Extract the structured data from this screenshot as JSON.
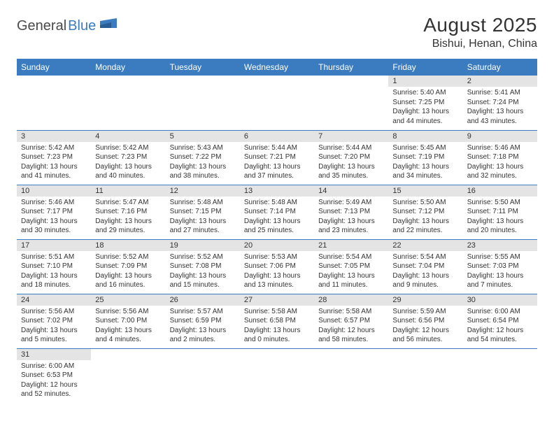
{
  "logo": {
    "text1": "General",
    "text2": "Blue"
  },
  "title": "August 2025",
  "location": "Bishui, Henan, China",
  "colors": {
    "header_bg": "#3b7bbf",
    "header_text": "#ffffff",
    "daynum_bg": "#e4e4e4",
    "border": "#3b7bbf",
    "body_text": "#333333",
    "page_bg": "#ffffff"
  },
  "fonts": {
    "title_size": 28,
    "location_size": 16,
    "dayhead_size": 12,
    "daynum_size": 11,
    "content_size": 10
  },
  "day_headers": [
    "Sunday",
    "Monday",
    "Tuesday",
    "Wednesday",
    "Thursday",
    "Friday",
    "Saturday"
  ],
  "weeks": [
    [
      null,
      null,
      null,
      null,
      null,
      {
        "n": "1",
        "sr": "5:40 AM",
        "ss": "7:25 PM",
        "dl": "13 hours and 44 minutes."
      },
      {
        "n": "2",
        "sr": "5:41 AM",
        "ss": "7:24 PM",
        "dl": "13 hours and 43 minutes."
      }
    ],
    [
      {
        "n": "3",
        "sr": "5:42 AM",
        "ss": "7:23 PM",
        "dl": "13 hours and 41 minutes."
      },
      {
        "n": "4",
        "sr": "5:42 AM",
        "ss": "7:23 PM",
        "dl": "13 hours and 40 minutes."
      },
      {
        "n": "5",
        "sr": "5:43 AM",
        "ss": "7:22 PM",
        "dl": "13 hours and 38 minutes."
      },
      {
        "n": "6",
        "sr": "5:44 AM",
        "ss": "7:21 PM",
        "dl": "13 hours and 37 minutes."
      },
      {
        "n": "7",
        "sr": "5:44 AM",
        "ss": "7:20 PM",
        "dl": "13 hours and 35 minutes."
      },
      {
        "n": "8",
        "sr": "5:45 AM",
        "ss": "7:19 PM",
        "dl": "13 hours and 34 minutes."
      },
      {
        "n": "9",
        "sr": "5:46 AM",
        "ss": "7:18 PM",
        "dl": "13 hours and 32 minutes."
      }
    ],
    [
      {
        "n": "10",
        "sr": "5:46 AM",
        "ss": "7:17 PM",
        "dl": "13 hours and 30 minutes."
      },
      {
        "n": "11",
        "sr": "5:47 AM",
        "ss": "7:16 PM",
        "dl": "13 hours and 29 minutes."
      },
      {
        "n": "12",
        "sr": "5:48 AM",
        "ss": "7:15 PM",
        "dl": "13 hours and 27 minutes."
      },
      {
        "n": "13",
        "sr": "5:48 AM",
        "ss": "7:14 PM",
        "dl": "13 hours and 25 minutes."
      },
      {
        "n": "14",
        "sr": "5:49 AM",
        "ss": "7:13 PM",
        "dl": "13 hours and 23 minutes."
      },
      {
        "n": "15",
        "sr": "5:50 AM",
        "ss": "7:12 PM",
        "dl": "13 hours and 22 minutes."
      },
      {
        "n": "16",
        "sr": "5:50 AM",
        "ss": "7:11 PM",
        "dl": "13 hours and 20 minutes."
      }
    ],
    [
      {
        "n": "17",
        "sr": "5:51 AM",
        "ss": "7:10 PM",
        "dl": "13 hours and 18 minutes."
      },
      {
        "n": "18",
        "sr": "5:52 AM",
        "ss": "7:09 PM",
        "dl": "13 hours and 16 minutes."
      },
      {
        "n": "19",
        "sr": "5:52 AM",
        "ss": "7:08 PM",
        "dl": "13 hours and 15 minutes."
      },
      {
        "n": "20",
        "sr": "5:53 AM",
        "ss": "7:06 PM",
        "dl": "13 hours and 13 minutes."
      },
      {
        "n": "21",
        "sr": "5:54 AM",
        "ss": "7:05 PM",
        "dl": "13 hours and 11 minutes."
      },
      {
        "n": "22",
        "sr": "5:54 AM",
        "ss": "7:04 PM",
        "dl": "13 hours and 9 minutes."
      },
      {
        "n": "23",
        "sr": "5:55 AM",
        "ss": "7:03 PM",
        "dl": "13 hours and 7 minutes."
      }
    ],
    [
      {
        "n": "24",
        "sr": "5:56 AM",
        "ss": "7:02 PM",
        "dl": "13 hours and 5 minutes."
      },
      {
        "n": "25",
        "sr": "5:56 AM",
        "ss": "7:00 PM",
        "dl": "13 hours and 4 minutes."
      },
      {
        "n": "26",
        "sr": "5:57 AM",
        "ss": "6:59 PM",
        "dl": "13 hours and 2 minutes."
      },
      {
        "n": "27",
        "sr": "5:58 AM",
        "ss": "6:58 PM",
        "dl": "13 hours and 0 minutes."
      },
      {
        "n": "28",
        "sr": "5:58 AM",
        "ss": "6:57 PM",
        "dl": "12 hours and 58 minutes."
      },
      {
        "n": "29",
        "sr": "5:59 AM",
        "ss": "6:56 PM",
        "dl": "12 hours and 56 minutes."
      },
      {
        "n": "30",
        "sr": "6:00 AM",
        "ss": "6:54 PM",
        "dl": "12 hours and 54 minutes."
      }
    ],
    [
      {
        "n": "31",
        "sr": "6:00 AM",
        "ss": "6:53 PM",
        "dl": "12 hours and 52 minutes."
      },
      null,
      null,
      null,
      null,
      null,
      null
    ]
  ],
  "labels": {
    "sunrise": "Sunrise:",
    "sunset": "Sunset:",
    "daylight": "Daylight:"
  }
}
